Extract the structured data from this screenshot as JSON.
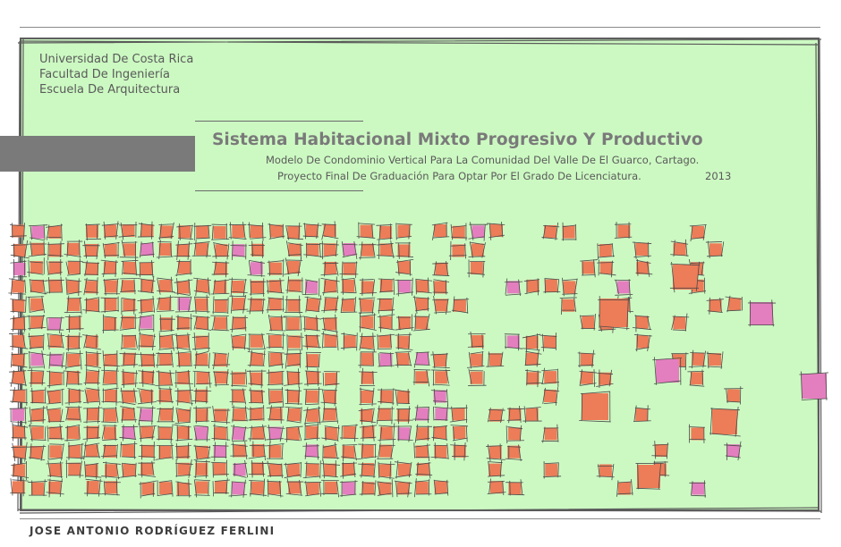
{
  "institution": {
    "line1": "Universidad De Costa Rica",
    "line2": "Facultad De Ingeniería",
    "line3": "Escuela De Arquitectura"
  },
  "title": "Sistema Habitacional Mixto Progresivo Y Productivo",
  "subtitle1": "Modelo De Condominio Vertical Para La Comunidad Del Valle De El Guarco, Cartago.",
  "subtitle2": "Proyecto Final De Graduación Para Optar Por El Grado De Licenciatura.",
  "year": "2013",
  "author": "JOSE ANTONIO RODRÍGUEZ FERLINI",
  "colors": {
    "background": "#ccf9c2",
    "square_orange": "#ec7d58",
    "square_pink": "#e47fbf",
    "band_gray": "#7a7a7a"
  }
}
